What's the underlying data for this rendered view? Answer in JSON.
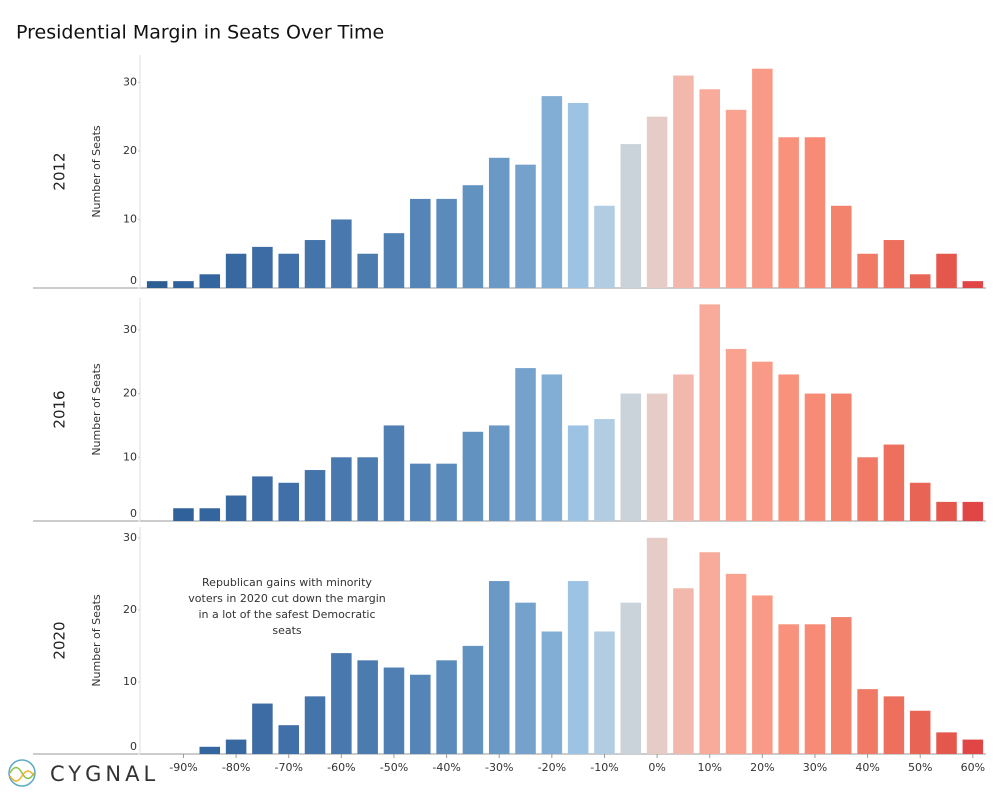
{
  "title": "Presidential Margin in Seats Over Time",
  "logo": "CYGNAL",
  "chart_data": [
    {
      "type": "bar",
      "row_label": "2012",
      "y_label": "Number of Seats",
      "x": [
        -95,
        -90,
        -85,
        -80,
        -75,
        -70,
        -65,
        -60,
        -55,
        -50,
        -45,
        -40,
        -35,
        -30,
        -25,
        -20,
        -15,
        -10,
        -5,
        0,
        5,
        10,
        15,
        20,
        25,
        30,
        35,
        40,
        45,
        50,
        55,
        60
      ],
      "values": [
        1,
        1,
        2,
        5,
        6,
        5,
        7,
        10,
        5,
        8,
        13,
        13,
        15,
        19,
        18,
        28,
        27,
        12,
        21,
        25,
        31,
        29,
        26,
        32,
        22,
        22,
        12,
        5,
        7,
        2,
        5,
        1
      ],
      "colors": [
        "#2d5e92",
        "#30619a",
        "#33659e",
        "#3868a0",
        "#3c6ca3",
        "#4070a7",
        "#4474aa",
        "#4878ad",
        "#4c7bb0",
        "#5080b3",
        "#5585b7",
        "#5a8bbb",
        "#6192c0",
        "#6a99c6",
        "#74a2cc",
        "#82aed6",
        "#9dc3e4",
        "#b1cde3",
        "#cbd3da",
        "#e5ccc6",
        "#f2b8ab",
        "#f8ab9a",
        "#f9a28f",
        "#f99a86",
        "#f8927d",
        "#f78b75",
        "#f4836d",
        "#f07a65",
        "#ec705d",
        "#e86455",
        "#e4574c",
        "#e04646"
      ],
      "xlim": [
        -97.5,
        62.5
      ],
      "ylim": [
        0,
        34
      ],
      "yticks": [
        0,
        10,
        20,
        30
      ]
    },
    {
      "type": "bar",
      "row_label": "2016",
      "y_label": "Number of Seats",
      "x": [
        -95,
        -90,
        -85,
        -80,
        -75,
        -70,
        -65,
        -60,
        -55,
        -50,
        -45,
        -40,
        -35,
        -30,
        -25,
        -20,
        -15,
        -10,
        -5,
        0,
        5,
        10,
        15,
        20,
        25,
        30,
        35,
        40,
        45,
        50,
        55,
        60
      ],
      "values": [
        null,
        2,
        2,
        4,
        7,
        6,
        8,
        10,
        10,
        15,
        9,
        9,
        14,
        15,
        24,
        23,
        15,
        16,
        20,
        20,
        23,
        34,
        27,
        25,
        23,
        20,
        20,
        10,
        12,
        6,
        3,
        3
      ],
      "colors": [
        "#2d5e92",
        "#30619a",
        "#33659e",
        "#3868a0",
        "#3c6ca3",
        "#4070a7",
        "#4474aa",
        "#4878ad",
        "#4c7bb0",
        "#5080b3",
        "#5585b7",
        "#5a8bbb",
        "#6192c0",
        "#6a99c6",
        "#74a2cc",
        "#82aed6",
        "#9dc3e4",
        "#b1cde3",
        "#cbd3da",
        "#e5ccc6",
        "#f2b8ab",
        "#f8ab9a",
        "#f9a28f",
        "#f99a86",
        "#f8927d",
        "#f78b75",
        "#f4836d",
        "#f07a65",
        "#ec705d",
        "#e86455",
        "#e4574c",
        "#e04646"
      ],
      "xlim": [
        -97.5,
        62.5
      ],
      "ylim": [
        0,
        35
      ],
      "yticks": [
        0,
        10,
        20,
        30
      ]
    },
    {
      "type": "bar",
      "row_label": "2020",
      "y_label": "Number of Seats",
      "annotation": "Republican gains with minority voters in 2020 cut down the margin in a lot of the safest Democratic seats",
      "x": [
        -95,
        -90,
        -85,
        -80,
        -75,
        -70,
        -65,
        -60,
        -55,
        -50,
        -45,
        -40,
        -35,
        -30,
        -25,
        -20,
        -15,
        -10,
        -5,
        0,
        5,
        10,
        15,
        20,
        25,
        30,
        35,
        40,
        45,
        50,
        55,
        60
      ],
      "values": [
        null,
        null,
        1,
        2,
        7,
        4,
        8,
        14,
        13,
        12,
        11,
        13,
        15,
        24,
        21,
        17,
        24,
        17,
        21,
        30,
        23,
        28,
        25,
        22,
        18,
        18,
        19,
        9,
        8,
        6,
        3,
        2
      ],
      "colors": [
        "#2d5e92",
        "#30619a",
        "#33659e",
        "#3868a0",
        "#3c6ca3",
        "#4070a7",
        "#4474aa",
        "#4878ad",
        "#4c7bb0",
        "#5080b3",
        "#5585b7",
        "#5a8bbb",
        "#6192c0",
        "#6a99c6",
        "#74a2cc",
        "#82aed6",
        "#9dc3e4",
        "#b1cde3",
        "#cbd3da",
        "#e5ccc6",
        "#f2b8ab",
        "#f8ab9a",
        "#f9a28f",
        "#f99a86",
        "#f8927d",
        "#f78b75",
        "#f4836d",
        "#f07a65",
        "#ec705d",
        "#e86455",
        "#e4574c",
        "#e04646"
      ],
      "xlim": [
        -97.5,
        62.5
      ],
      "ylim": [
        0,
        31.5
      ],
      "yticks": [
        0,
        10,
        20,
        30
      ],
      "xticks": [
        {
          "value": -90,
          "label": "-90%"
        },
        {
          "value": -80,
          "label": "-80%"
        },
        {
          "value": -70,
          "label": "-70%"
        },
        {
          "value": -60,
          "label": "-60%"
        },
        {
          "value": -50,
          "label": "-50%"
        },
        {
          "value": -40,
          "label": "-40%"
        },
        {
          "value": -30,
          "label": "-30%"
        },
        {
          "value": -20,
          "label": "-20%"
        },
        {
          "value": -10,
          "label": "-10%"
        },
        {
          "value": 0,
          "label": "0%"
        },
        {
          "value": 10,
          "label": "10%"
        },
        {
          "value": 20,
          "label": "20%"
        },
        {
          "value": 30,
          "label": "30%"
        },
        {
          "value": 40,
          "label": "40%"
        },
        {
          "value": 50,
          "label": "50%"
        },
        {
          "value": 60,
          "label": "60%"
        }
      ]
    }
  ]
}
